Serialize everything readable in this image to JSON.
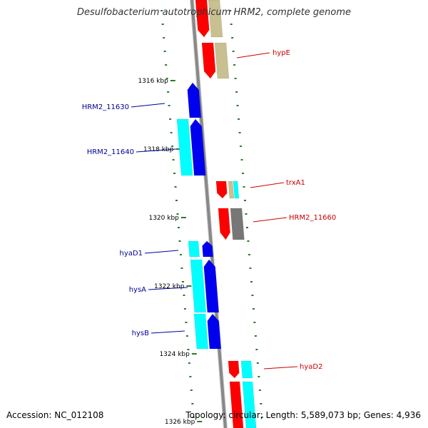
{
  "title": "Desulfobacterium autotrophicum HRM2, complete genome",
  "footer": {
    "accession": "Accession: NC_012108",
    "summary": "Topology: circular; Length: 5,589,073 bp; Genes: 4,936"
  },
  "colors": {
    "reverse_cds": "#0000ee",
    "reverse_rna": "#00ffff",
    "forward_cds": "#ff0000",
    "forward_misc": "#c8c090",
    "forward_gray": "#777777",
    "tick": "#2a7a2a",
    "backbone": "#888888",
    "reverse_label": "#000099",
    "forward_label": "#cc0000"
  },
  "tick_labels": [
    "1316 kbp",
    "1318 kbp",
    "1320 kbp",
    "1322 kbp",
    "1324 kbp",
    "1326 kbp"
  ],
  "genes": [
    {
      "name": "hypE",
      "strand": "forward"
    },
    {
      "name": "HRM2_11630",
      "strand": "reverse"
    },
    {
      "name": "HRM2_11640",
      "strand": "reverse"
    },
    {
      "name": "trxA1",
      "strand": "forward"
    },
    {
      "name": "HRM2_11660",
      "strand": "forward"
    },
    {
      "name": "hyaD1",
      "strand": "reverse"
    },
    {
      "name": "hysA",
      "strand": "reverse"
    },
    {
      "name": "hysB",
      "strand": "reverse"
    },
    {
      "name": "hyaD2",
      "strand": "forward"
    }
  ]
}
